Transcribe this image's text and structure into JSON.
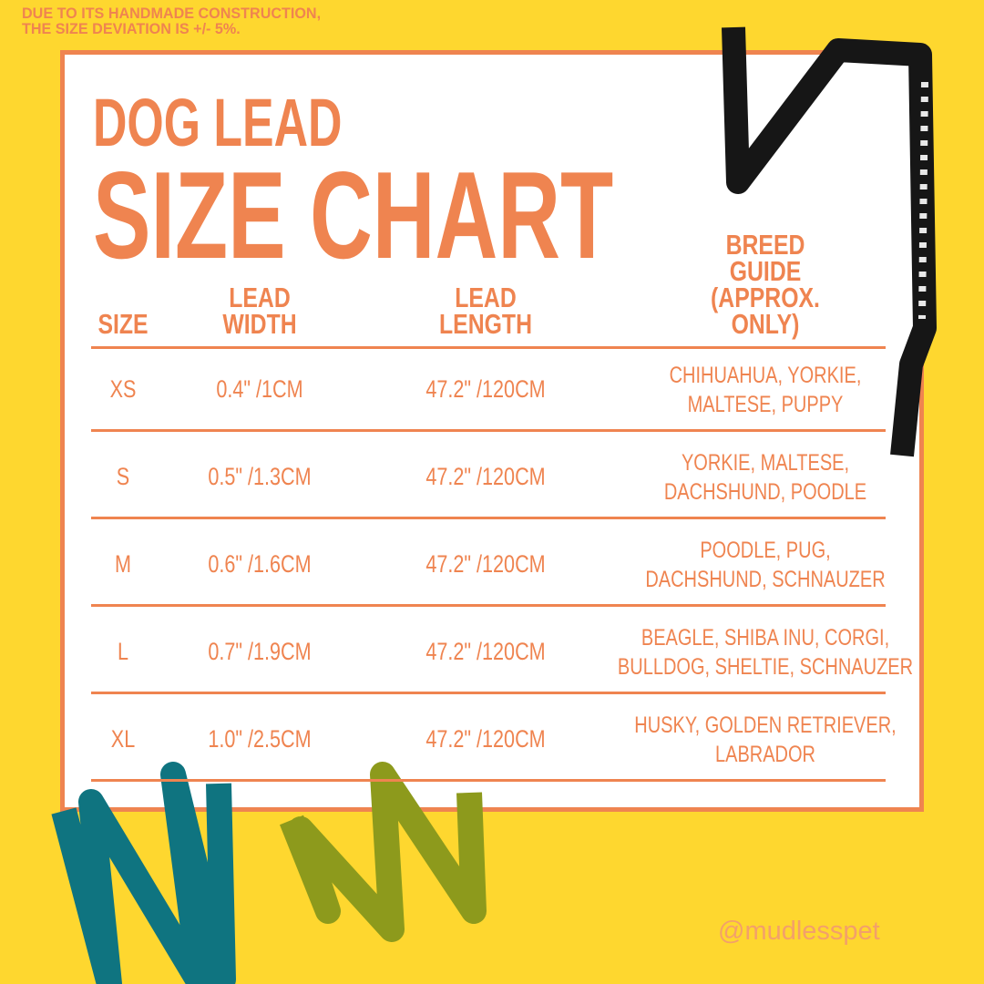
{
  "note": [
    "DUE TO ITS HANDMADE CONSTRUCTION,",
    "THE SIZE DEVIATION IS +/- 5%."
  ],
  "header": {
    "line1": "DOG LEAD",
    "line2": "SIZE CHART"
  },
  "table": {
    "columns": [
      [
        "SIZE"
      ],
      [
        "LEAD",
        "WIDTH"
      ],
      [
        "LEAD",
        "LENGTH"
      ],
      [
        "BREED",
        "GUIDE",
        "(APPROX.",
        "ONLY)"
      ]
    ],
    "rows": [
      [
        "XS",
        "0.4\" /1CM",
        "47.2\" /120CM",
        [
          "CHIHUAHUA, YORKIE,",
          "MALTESE, PUPPY"
        ]
      ],
      [
        "S",
        "0.5\" /1.3CM",
        "47.2\" /120CM",
        [
          "YORKIE, MALTESE,",
          "DACHSHUND, POODLE"
        ]
      ],
      [
        "M",
        "0.6\" /1.6CM",
        "47.2\" /120CM",
        [
          "POODLE, PUG,",
          "DACHSHUND, SCHNAUZER"
        ]
      ],
      [
        "L",
        "0.7\" /1.9CM",
        "47.2\" /120CM",
        [
          "BEAGLE, SHIBA INU, CORGI,",
          "BULLDOG, SHELTIE, SCHNAUZER"
        ]
      ],
      [
        "XL",
        "1.0\" /2.5CM",
        "47.2\" /120CM",
        [
          "HUSKY, GOLDEN RETRIEVER,",
          "LABRADOR"
        ]
      ]
    ]
  },
  "footer": {
    "handle": "@mudlesspet"
  }
}
